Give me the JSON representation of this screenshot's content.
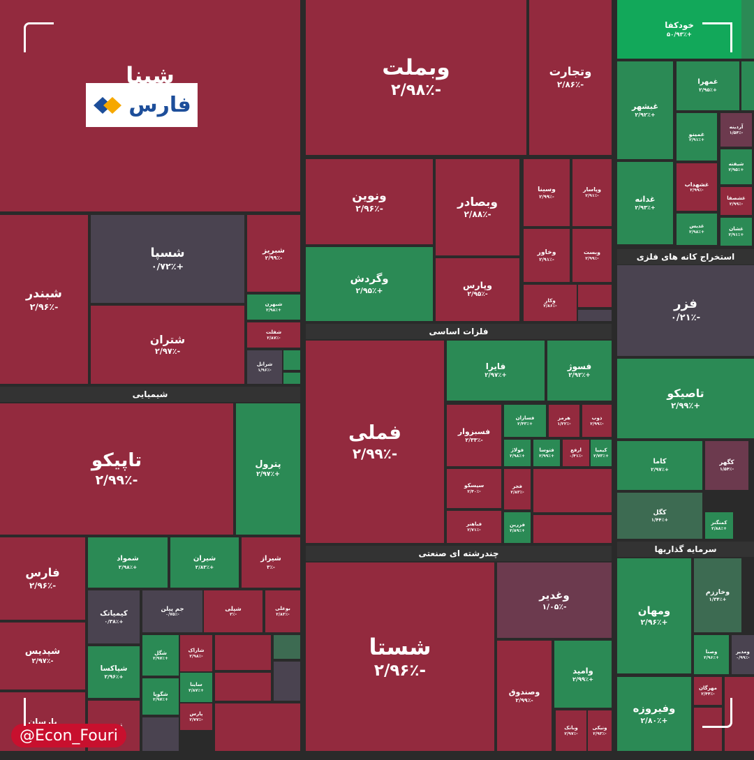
{
  "logo": "فارس",
  "watermark": "@Econ_Fouri",
  "sectors": [
    "استخراج کانه های فلزی",
    "سرمایه گذاریها",
    "فلزات اساسی",
    "چندرشته ای صنعتی",
    "شیمیایی"
  ],
  "tiles": [
    {
      "name": "شپنا"
    },
    {
      "name": "وبملت",
      "change": "-۲/۹۸٪"
    },
    {
      "name": "وتجارت",
      "change": "-۲/۸۶٪"
    },
    {
      "name": "خودکفا",
      "change": "+۵۰/۹۳٪"
    },
    {
      "name": "غبشهر",
      "change": "+۲/۹۲٪"
    },
    {
      "name": "غمهرا",
      "change": "+۲/۹۵٪"
    },
    {
      "name": "غمینو",
      "change": "+۲/۹۱٪"
    },
    {
      "name": "آردینه",
      "change": "-۱/۵۴٪"
    },
    {
      "name": "شیفته",
      "change": "+۲/۹۵٪"
    },
    {
      "name": "غدانه",
      "change": "+۲/۹۳٪"
    },
    {
      "name": "غشهداب",
      "change": "-۲/۹۹٪"
    },
    {
      "name": "غشصفا",
      "change": "-۲/۹۹٪"
    },
    {
      "name": "غدیس",
      "change": "+۲/۹۸٪"
    },
    {
      "name": "غشان",
      "change": "+۲/۹۱٪"
    },
    {
      "name": "فزر",
      "change": "-۰/۲۱٪"
    },
    {
      "name": "تاصیکو",
      "change": "+۲/۹۹٪"
    },
    {
      "name": "کاما",
      "change": "+۲/۹۷٪"
    },
    {
      "name": "کگهر",
      "change": "-۱/۵۴٪"
    },
    {
      "name": "کگل",
      "change": "+۱/۴۴٪"
    },
    {
      "name": "کمنگنز",
      "change": "+۲/۸۸٪"
    },
    {
      "name": "ومهان",
      "change": "+۲/۹۶٪"
    },
    {
      "name": "وخارزم",
      "change": "+۱/۳۴٪"
    },
    {
      "name": "وصنا",
      "change": "+۲/۹۶٪"
    },
    {
      "name": "ومدیر",
      "change": "-۰/۹۹٪"
    },
    {
      "name": "وفیروزه",
      "change": "+۲/۸۰٪"
    },
    {
      "name": "مهرگان",
      "change": "-۲/۴۴٪"
    },
    {
      "name": "ونوین",
      "change": "-۲/۹۶٪"
    },
    {
      "name": "وبصادر",
      "change": "-۲/۸۸٪"
    },
    {
      "name": "وسینا",
      "change": "-۲/۹۹٪"
    },
    {
      "name": "وپاسار",
      "change": "-۲/۹۱٪"
    },
    {
      "name": "وگردش",
      "change": "+۲/۹۵٪"
    },
    {
      "name": "وپارس",
      "change": "-۲/۹۵٪"
    },
    {
      "name": "وخاور",
      "change": "-۲/۹۱٪"
    },
    {
      "name": "وبست",
      "change": "-۲/۹۹٪"
    },
    {
      "name": "وکار",
      "change": "-۲/۸۶٪"
    },
    {
      "name": "فملی",
      "change": "-۲/۹۹٪"
    },
    {
      "name": "فایرا",
      "change": "+۲/۹۷٪"
    },
    {
      "name": "فسوژ",
      "change": "+۲/۹۲٪"
    },
    {
      "name": "فسبزوار",
      "change": "-۲/۳۳٪"
    },
    {
      "name": "فسازان",
      "change": "+۲/۴۳٪"
    },
    {
      "name": "هرمز",
      "change": "-۱/۲۲٪"
    },
    {
      "name": "ذوب",
      "change": "-۲/۹۹٪"
    },
    {
      "name": "فولاژ",
      "change": "+۲/۹۸٪"
    },
    {
      "name": "فتوسا",
      "change": "+۲/۹۹٪"
    },
    {
      "name": "ارفع",
      "change": "-۰/۴۱٪"
    },
    {
      "name": "کیمیا",
      "change": "+۲/۷۳٪"
    },
    {
      "name": "سیسکو",
      "change": "-۲/۴۰٪"
    },
    {
      "name": "فجر",
      "change": "-۲/۸۳٪"
    },
    {
      "name": "فباهنر",
      "change": "-۲/۷۱٪"
    },
    {
      "name": "فزرین",
      "change": "+۲/۸۹٪"
    },
    {
      "name": "شستا",
      "change": "-۲/۹۶٪"
    },
    {
      "name": "وغدیر",
      "change": "-۱/۰۵٪"
    },
    {
      "name": "وامید",
      "change": "+۲/۹۹٪"
    },
    {
      "name": "وصندوق",
      "change": "-۲/۹۹٪"
    },
    {
      "name": "وبانک",
      "change": "-۲/۹۷٪"
    },
    {
      "name": "ونیکی",
      "change": "-۲/۹۳٪"
    },
    {
      "name": "شبندر",
      "change": "-۲/۹۶٪"
    },
    {
      "name": "شسپا",
      "change": "+۰/۷۲٪"
    },
    {
      "name": "شتران",
      "change": "-۲/۹۷٪"
    },
    {
      "name": "شبریز",
      "change": "-۲/۹۹٪"
    },
    {
      "name": "شبهرن",
      "change": "+۲/۹۸٪"
    },
    {
      "name": "شفلت",
      "change": "-۲/۸۷٪"
    },
    {
      "name": "شرانل",
      "change": "-۱/۹۶٪"
    },
    {
      "name": "تاپیکو",
      "change": "-۲/۹۹٪"
    },
    {
      "name": "پترول",
      "change": "+۲/۹۷٪"
    },
    {
      "name": "فارس",
      "change": "-۲/۹۶٪"
    },
    {
      "name": "شپدیس",
      "change": "-۲/۹۷٪"
    },
    {
      "name": "پارسان"
    },
    {
      "name": "شمواد",
      "change": "+۲/۹۸٪"
    },
    {
      "name": "شیران",
      "change": "+۲/۸۳٪"
    },
    {
      "name": "شیراز",
      "change": "-۳٪"
    },
    {
      "name": "کیمیاتک",
      "change": "+۰/۳۸٪"
    },
    {
      "name": "جم پیلن",
      "change": "-۰/۷۵٪"
    },
    {
      "name": "شپلی",
      "change": "-۳٪"
    },
    {
      "name": "بوعلی",
      "change": "-۲/۸۳٪"
    },
    {
      "name": "شپاکسا",
      "change": "+۲/۹۶٪"
    },
    {
      "name": "شگل",
      "change": "+۲/۹۷٪"
    },
    {
      "name": "شاراک",
      "change": "-۲/۹۸٪"
    },
    {
      "name": "نوری"
    },
    {
      "name": "شگویا",
      "change": "+۲/۹۷٪"
    },
    {
      "name": "ساینا",
      "change": "+۲/۸۷٪"
    },
    {
      "name": "پارس",
      "change": "-۲/۷۷٪"
    }
  ]
}
